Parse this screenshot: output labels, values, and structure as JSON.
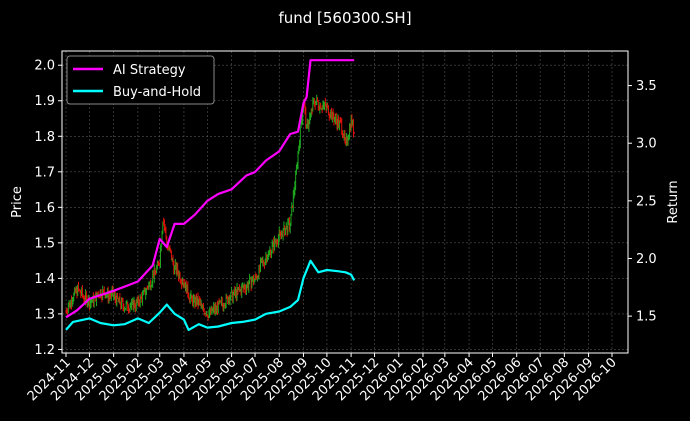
{
  "chart_data": {
    "type": "line",
    "title": "fund [560300.SH]",
    "ylabel": "Price",
    "y2label": "Return",
    "ylim": [
      1.19,
      2.04
    ],
    "y2lim": [
      1.18,
      3.8
    ],
    "x_ticks": [
      "2024-11",
      "2024-12",
      "2025-01",
      "2025-02",
      "2025-03",
      "2025-04",
      "2025-05",
      "2025-06",
      "2025-07",
      "2025-08",
      "2025-09",
      "2025-10",
      "2025-11",
      "2025-12",
      "2026-01",
      "2026-02",
      "2026-03",
      "2026-04",
      "2026-05",
      "2026-06",
      "2026-07",
      "2026-08",
      "2026-09",
      "2026-10"
    ],
    "y_ticks": [
      "1.2",
      "1.3",
      "1.4",
      "1.5",
      "1.6",
      "1.7",
      "1.8",
      "1.9",
      "2.0"
    ],
    "y2_ticks": [
      "1.5",
      "2.0",
      "2.5",
      "3.0",
      "3.5"
    ],
    "grid": true,
    "legend_position": "top-left",
    "price_colors": {
      "up": "#1faa1f",
      "down": "#e0100a"
    },
    "price_series": {
      "name": "Price",
      "x": [
        "2024-11-01",
        "2024-11-15",
        "2024-12-01",
        "2024-12-15",
        "2025-01-01",
        "2025-01-15",
        "2025-02-01",
        "2025-02-15",
        "2025-03-01",
        "2025-03-05",
        "2025-03-10",
        "2025-03-20",
        "2025-04-01",
        "2025-04-10",
        "2025-04-20",
        "2025-05-01",
        "2025-05-15",
        "2025-06-01",
        "2025-06-15",
        "2025-07-01",
        "2025-07-15",
        "2025-08-01",
        "2025-08-15",
        "2025-08-25",
        "2025-09-01",
        "2025-09-05",
        "2025-09-15",
        "2025-10-01",
        "2025-10-10",
        "2025-10-20",
        "2025-10-25",
        "2025-11-01",
        "2025-11-05"
      ],
      "values": [
        1.31,
        1.37,
        1.33,
        1.36,
        1.35,
        1.32,
        1.33,
        1.38,
        1.45,
        1.57,
        1.5,
        1.43,
        1.39,
        1.34,
        1.33,
        1.3,
        1.32,
        1.35,
        1.37,
        1.4,
        1.46,
        1.52,
        1.55,
        1.75,
        1.9,
        1.82,
        1.9,
        1.88,
        1.85,
        1.83,
        1.77,
        1.85,
        1.81
      ]
    },
    "series": [
      {
        "name": "AI Strategy",
        "color": "#ff00ff",
        "x": [
          "2024-11-01",
          "2024-11-15",
          "2024-12-01",
          "2025-01-01",
          "2025-02-01",
          "2025-02-20",
          "2025-03-01",
          "2025-03-10",
          "2025-03-20",
          "2025-04-01",
          "2025-04-15",
          "2025-05-01",
          "2025-05-15",
          "2025-06-01",
          "2025-06-20",
          "2025-07-01",
          "2025-07-15",
          "2025-08-01",
          "2025-08-15",
          "2025-08-25",
          "2025-09-01",
          "2025-09-05",
          "2025-09-10",
          "2025-10-01",
          "2025-11-05"
        ],
        "values": [
          1.49,
          1.55,
          1.65,
          1.72,
          1.8,
          1.94,
          2.17,
          2.1,
          2.3,
          2.3,
          2.38,
          2.5,
          2.56,
          2.6,
          2.72,
          2.75,
          2.85,
          2.93,
          3.08,
          3.1,
          3.35,
          3.4,
          3.72,
          3.72,
          3.72
        ]
      },
      {
        "name": "Buy-and-Hold",
        "color": "#00ffff",
        "x": [
          "2024-11-01",
          "2024-11-10",
          "2024-12-01",
          "2024-12-15",
          "2025-01-01",
          "2025-01-15",
          "2025-02-01",
          "2025-02-15",
          "2025-03-01",
          "2025-03-10",
          "2025-03-20",
          "2025-04-01",
          "2025-04-07",
          "2025-04-20",
          "2025-05-01",
          "2025-05-15",
          "2025-06-01",
          "2025-06-15",
          "2025-07-01",
          "2025-07-15",
          "2025-08-01",
          "2025-08-15",
          "2025-08-25",
          "2025-09-01",
          "2025-09-10",
          "2025-09-20",
          "2025-10-01",
          "2025-10-15",
          "2025-10-25",
          "2025-11-01",
          "2025-11-05"
        ],
        "values": [
          1.38,
          1.45,
          1.48,
          1.44,
          1.42,
          1.43,
          1.48,
          1.44,
          1.53,
          1.6,
          1.52,
          1.47,
          1.38,
          1.43,
          1.4,
          1.41,
          1.44,
          1.45,
          1.47,
          1.52,
          1.54,
          1.58,
          1.64,
          1.83,
          1.98,
          1.88,
          1.9,
          1.89,
          1.88,
          1.86,
          1.81
        ]
      }
    ]
  }
}
